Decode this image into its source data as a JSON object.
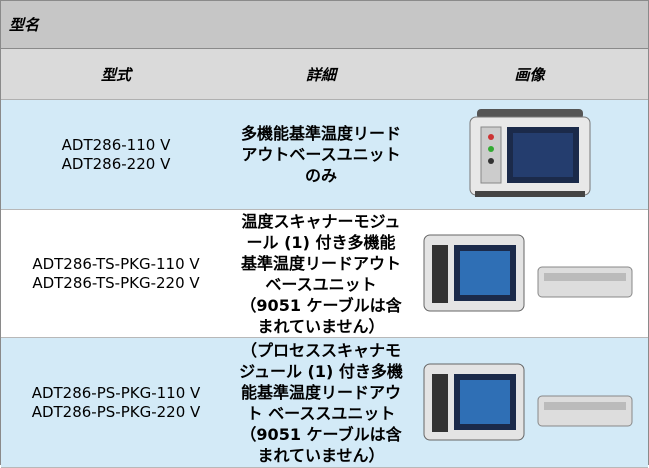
{
  "header": {
    "title": "型名"
  },
  "table": {
    "columns": [
      "型式",
      "詳細",
      "画像"
    ],
    "rows": [
      {
        "models": [
          "ADT286-110 V",
          "ADT286-220 V"
        ],
        "detail": "多機能基準温度リードアウトベースユニットのみ"
      },
      {
        "models": [
          "ADT286-TS-PKG-110 V",
          "ADT286-TS-PKG-220 V"
        ],
        "detail": "温度スキャナーモジュール (1) 付き多機能基準温度リードアウト　ベースユニット（9051 ケーブルは含まれていません）"
      },
      {
        "models": [
          "ADT286-PS-PKG-110 V",
          "ADT286-PS-PKG-220 V"
        ],
        "detail": "（プロセススキャナモジュール (1) 付き多機能基準温度リードアウト ベーススユニット（9051 ケーブルは含まれていません）"
      }
    ]
  }
}
